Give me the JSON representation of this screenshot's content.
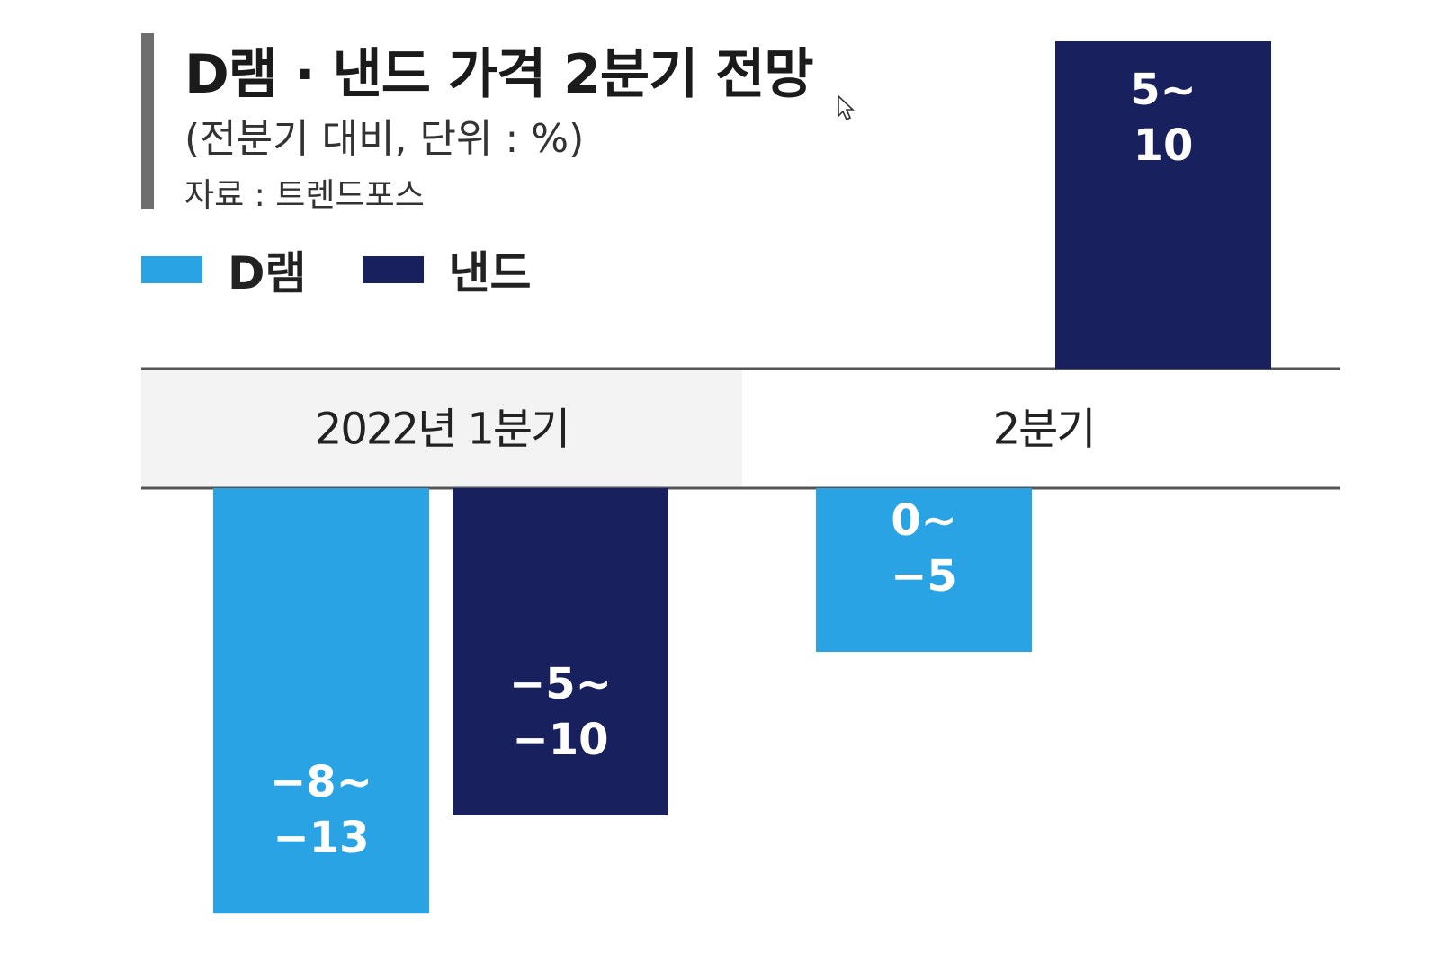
{
  "colors": {
    "dram": "#29a3e3",
    "nand": "#19205e",
    "category_band": "#f3f3f3",
    "axis_line": "#555555"
  },
  "chart_data": {
    "type": "bar",
    "title": "D램 · 낸드 가격 2분기 전망",
    "subtitle": "(전분기 대비, 단위 : %)",
    "source": "자료 : 트렌드포스",
    "categories": [
      "2022년 1분기",
      "2분기"
    ],
    "legend_position": "top-left",
    "grid": false,
    "unit": "%",
    "series": [
      {
        "name": "D램",
        "color": "#29a3e3",
        "values": [
          -13,
          -5
        ],
        "range_labels": [
          [
            "−8∼",
            "−13"
          ],
          [
            "0∼",
            "−5"
          ]
        ]
      },
      {
        "name": "낸드",
        "color": "#19205e",
        "values": [
          -10,
          10
        ],
        "range_labels": [
          [
            "−5∼",
            "−10"
          ],
          [
            "5∼",
            "10"
          ]
        ]
      }
    ],
    "ylim": [
      -13,
      10
    ]
  }
}
